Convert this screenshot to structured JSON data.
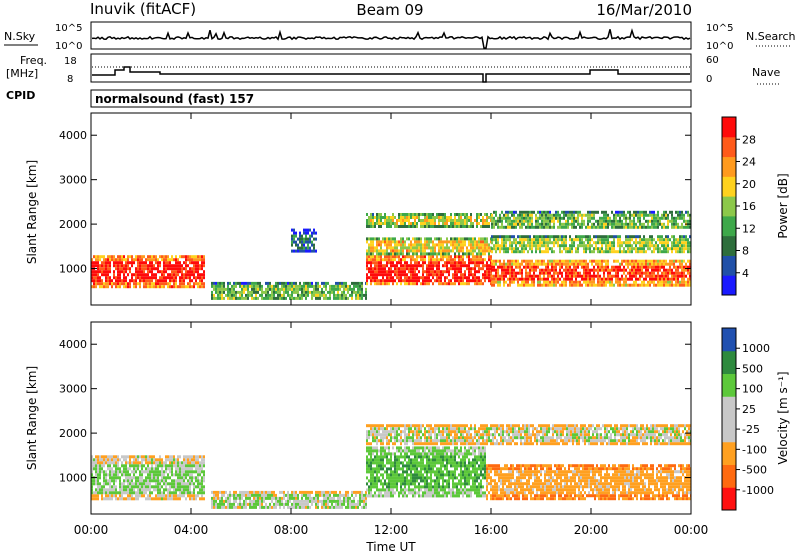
{
  "header": {
    "station": "Inuvik (fitACF)",
    "beam": "Beam 09",
    "date": "16/Mar/2010"
  },
  "nsky_panel": {
    "left_label": "N.Sky",
    "right_label": "N.Search",
    "left_ticks": [
      "10^5",
      "10^0"
    ],
    "right_ticks": [
      "10^5",
      "10^0"
    ]
  },
  "freq_panel": {
    "left_label_1": "Freq.",
    "left_label_2": "[MHz]",
    "right_label": "Nave",
    "left_ticks": [
      "18",
      "8"
    ],
    "right_ticks": [
      "60",
      "0"
    ]
  },
  "cpid": {
    "label": "CPID",
    "value": "normalsound (fast) 157"
  },
  "xaxis": {
    "label": "Time UT",
    "ticks": [
      "00:00",
      "04:00",
      "08:00",
      "12:00",
      "16:00",
      "20:00",
      "00:00"
    ]
  },
  "power_panel": {
    "ylabel": "Slant Range [km]",
    "yticks": [
      "1000",
      "2000",
      "3000",
      "4000"
    ],
    "colorbar_label": "Power [dB]",
    "colorbar_ticks": [
      "4",
      "8",
      "12",
      "16",
      "20",
      "24",
      "28"
    ]
  },
  "velocity_panel": {
    "ylabel": "Slant Range [km]",
    "yticks": [
      "1000",
      "2000",
      "3000",
      "4000"
    ],
    "colorbar_label": "Velocity [m s⁻¹]",
    "colorbar_ticks": [
      "1000",
      "500",
      "100",
      "25",
      "-25",
      "-100",
      "-500",
      "-1000"
    ]
  },
  "chart_data": {
    "type": "heatmap",
    "x_range_hours": [
      0,
      24
    ],
    "y_range_km": [
      180,
      4500
    ],
    "colors": {
      "power_scale": [
        "#1a1aff",
        "#2050a8",
        "#2e6e3c",
        "#3ea84a",
        "#8cc84a",
        "#ffd21e",
        "#ff9a1e",
        "#ff5a1a",
        "#ff0a0a"
      ],
      "velocity_scale": [
        "#ff1010",
        "#ff6a10",
        "#ffa020",
        "#c8c8c8",
        "#c8c8c8",
        "#5cc83a",
        "#2e8a3e",
        "#2050b0"
      ]
    },
    "power_regions": [
      {
        "t0": 0.0,
        "t1": 4.5,
        "r0": 600,
        "r1": 1300,
        "level_db": 30
      },
      {
        "t0": 4.8,
        "t1": 11.0,
        "r0": 300,
        "r1": 700,
        "level_db": 14
      },
      {
        "t0": 8.0,
        "t1": 9.0,
        "r0": 1400,
        "r1": 1900,
        "level_db": 8
      },
      {
        "t0": 11.0,
        "t1": 16.0,
        "r0": 650,
        "r1": 1300,
        "level_db": 30
      },
      {
        "t0": 11.0,
        "t1": 16.0,
        "r0": 1350,
        "r1": 1700,
        "level_db": 20
      },
      {
        "t0": 11.0,
        "t1": 16.0,
        "r0": 1950,
        "r1": 2250,
        "level_db": 18
      },
      {
        "t0": 16.0,
        "t1": 24.0,
        "r0": 650,
        "r1": 1200,
        "level_db": 28
      },
      {
        "t0": 16.0,
        "t1": 24.0,
        "r0": 1350,
        "r1": 1750,
        "level_db": 16
      },
      {
        "t0": 16.0,
        "t1": 24.0,
        "r0": 1900,
        "r1": 2300,
        "level_db": 14
      }
    ],
    "velocity_regions": [
      {
        "t0": 0.0,
        "t1": 4.5,
        "r0": 500,
        "r1": 1500,
        "velocity": 100
      },
      {
        "t0": 4.8,
        "t1": 11.0,
        "r0": 300,
        "r1": 700,
        "velocity": 50
      },
      {
        "t0": 11.0,
        "t1": 15.8,
        "r0": 600,
        "r1": 1700,
        "velocity": 250
      },
      {
        "t0": 11.0,
        "t1": 24.0,
        "r0": 1750,
        "r1": 2200,
        "velocity": 0
      },
      {
        "t0": 15.8,
        "t1": 24.0,
        "r0": 550,
        "r1": 1300,
        "velocity": -150
      }
    ]
  }
}
